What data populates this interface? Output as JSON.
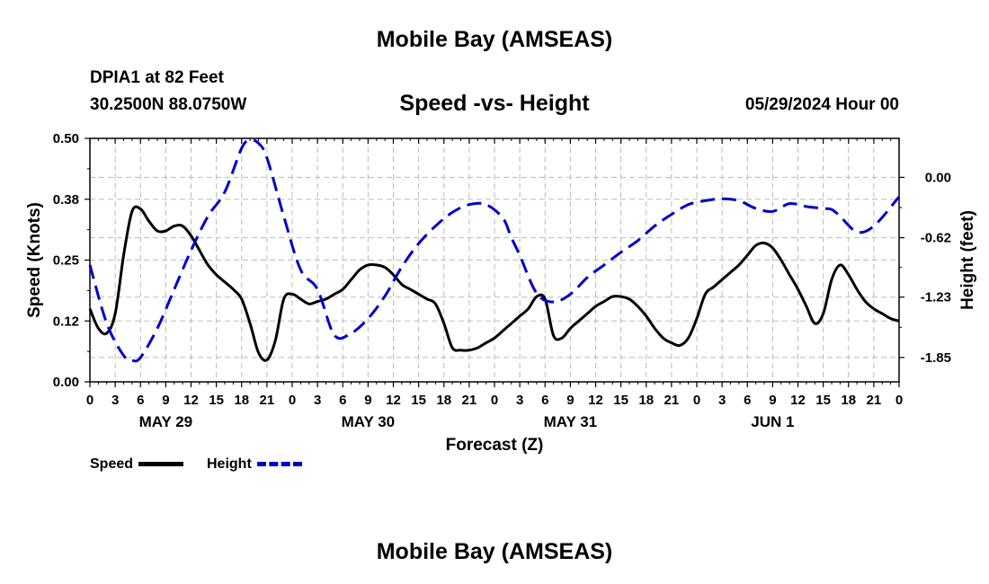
{
  "header": {
    "title": "Mobile Bay (AMSEAS)",
    "station": "DPIA1 at 82 Feet",
    "coords": "30.2500N  88.0750W",
    "subtitle": "Speed -vs- Height",
    "run_time": "05/29/2024 Hour 00"
  },
  "footer": {
    "title": "Mobile Bay (AMSEAS)"
  },
  "legend": {
    "items": [
      {
        "label": "Speed",
        "color": "#000000",
        "style": "solid"
      },
      {
        "label": "Height",
        "color": "#0000cc",
        "style": "dashed"
      }
    ]
  },
  "chart_data": {
    "type": "line",
    "title": "Speed -vs- Height",
    "xlabel": "Forecast (Z)",
    "ylabel": "Speed (Knots)",
    "y2label": "Height (feet)",
    "x_range_hours": [
      0,
      96
    ],
    "x_tick_labels": [
      "0",
      "3",
      "6",
      "9",
      "12",
      "15",
      "18",
      "21",
      "0",
      "3",
      "6",
      "9",
      "12",
      "15",
      "18",
      "21",
      "0",
      "3",
      "6",
      "9",
      "12",
      "15",
      "18",
      "21",
      "0",
      "3",
      "6",
      "9",
      "12",
      "15",
      "18",
      "21",
      "0"
    ],
    "day_labels": [
      {
        "hour": 9,
        "label": "MAY 29"
      },
      {
        "hour": 33,
        "label": "MAY 30"
      },
      {
        "hour": 57,
        "label": "MAY 31"
      },
      {
        "hour": 81,
        "label": "JUN 1"
      }
    ],
    "ylim": [
      0,
      0.5
    ],
    "y_ticks": [
      0.0,
      0.125,
      0.25,
      0.375,
      0.5
    ],
    "y_tick_labels": [
      "0.00",
      "0.12",
      "0.25",
      "0.38",
      "0.50"
    ],
    "y2_ticks": [
      0.0,
      -0.62,
      -1.23,
      -1.85
    ],
    "y2_tick_labels": [
      "0.00",
      "-0.62",
      "-1.23",
      "-1.85"
    ],
    "y2lim": [
      -2.1,
      0.4
    ],
    "grid": true,
    "legend_position": "bottom-left",
    "series": [
      {
        "name": "Speed",
        "axis": "left",
        "color": "#000000",
        "style": "solid",
        "x": [
          0,
          1,
          2,
          3,
          4,
          5,
          6,
          7,
          8,
          9,
          10,
          11,
          12,
          13,
          14,
          15,
          16,
          17,
          18,
          19,
          20,
          21,
          22,
          23,
          24,
          25,
          26,
          27,
          28,
          29,
          30,
          31,
          32,
          33,
          34,
          35,
          36,
          37,
          38,
          39,
          40,
          41,
          42,
          43,
          44,
          45,
          46,
          47,
          48,
          49,
          50,
          51,
          52,
          53,
          54,
          55,
          56,
          57,
          58,
          59,
          60,
          61,
          62,
          63,
          64,
          65,
          66,
          67,
          68,
          69,
          70,
          71,
          72,
          73,
          74,
          75,
          76,
          77,
          78,
          79,
          80,
          81,
          82,
          83,
          84,
          85,
          86,
          87,
          88,
          89,
          90,
          91,
          92,
          93,
          94,
          95,
          96
        ],
        "values": [
          0.15,
          0.11,
          0.1,
          0.14,
          0.26,
          0.35,
          0.355,
          0.33,
          0.31,
          0.31,
          0.32,
          0.32,
          0.3,
          0.27,
          0.24,
          0.22,
          0.205,
          0.19,
          0.17,
          0.12,
          0.06,
          0.045,
          0.085,
          0.17,
          0.18,
          0.17,
          0.16,
          0.165,
          0.17,
          0.18,
          0.19,
          0.21,
          0.23,
          0.24,
          0.24,
          0.235,
          0.22,
          0.2,
          0.19,
          0.18,
          0.17,
          0.16,
          0.12,
          0.07,
          0.065,
          0.065,
          0.07,
          0.08,
          0.09,
          0.105,
          0.12,
          0.135,
          0.15,
          0.175,
          0.17,
          0.095,
          0.09,
          0.11,
          0.125,
          0.14,
          0.155,
          0.165,
          0.175,
          0.175,
          0.17,
          0.155,
          0.135,
          0.11,
          0.09,
          0.08,
          0.075,
          0.09,
          0.13,
          0.18,
          0.195,
          0.21,
          0.225,
          0.24,
          0.26,
          0.28,
          0.285,
          0.275,
          0.25,
          0.22,
          0.19,
          0.155,
          0.12,
          0.14,
          0.21,
          0.24,
          0.22,
          0.19,
          0.165,
          0.15,
          0.14,
          0.13,
          0.125
        ]
      },
      {
        "name": "Height",
        "axis": "right",
        "color": "#0000cc",
        "style": "dashed",
        "x": [
          0,
          2,
          4,
          5,
          6,
          8,
          10,
          12,
          14,
          16,
          18,
          19,
          20,
          21,
          23,
          25,
          27,
          29,
          31,
          33,
          35,
          37,
          39,
          41,
          43,
          45,
          47,
          49,
          50,
          51,
          53,
          55,
          57,
          59,
          61,
          63,
          65,
          67,
          69,
          71,
          73,
          75,
          77,
          79,
          81,
          83,
          85,
          87,
          88,
          89,
          91,
          93,
          96
        ],
        "values": [
          -0.9,
          -1.5,
          -1.83,
          -1.88,
          -1.85,
          -1.55,
          -1.15,
          -0.75,
          -0.4,
          -0.15,
          0.3,
          0.38,
          0.35,
          0.2,
          -0.4,
          -0.95,
          -1.15,
          -1.62,
          -1.6,
          -1.45,
          -1.22,
          -0.92,
          -0.68,
          -0.5,
          -0.36,
          -0.28,
          -0.28,
          -0.42,
          -0.62,
          -0.8,
          -1.19,
          -1.28,
          -1.2,
          -1.03,
          -0.9,
          -0.77,
          -0.65,
          -0.5,
          -0.38,
          -0.28,
          -0.24,
          -0.22,
          -0.24,
          -0.32,
          -0.35,
          -0.27,
          -0.3,
          -0.32,
          -0.33,
          -0.4,
          -0.56,
          -0.5,
          -0.2
        ]
      }
    ]
  }
}
